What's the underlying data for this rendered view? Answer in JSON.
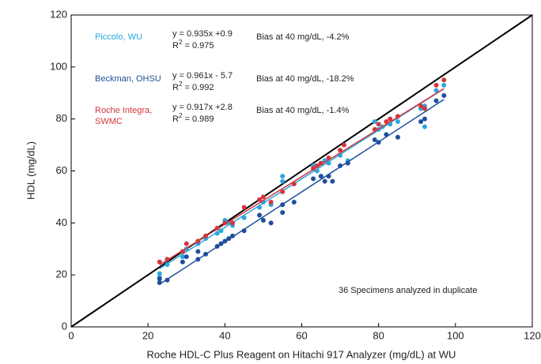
{
  "chart_data": {
    "type": "scatter",
    "x_label": "Roche HDL-C Plus Reagent on Hitachi 917 Analyzer (mg/dL) at WU",
    "y_label": "HDL (mg/dL)",
    "xlim": [
      0,
      120
    ],
    "ylim": [
      0,
      120
    ],
    "xticks": [
      0,
      20,
      40,
      60,
      80,
      100,
      120
    ],
    "yticks": [
      0,
      20,
      40,
      60,
      80,
      100,
      120
    ],
    "identity_line": true,
    "identity_color": "#000000",
    "annotation": "36 Specimens analyzed in duplicate",
    "series": [
      {
        "name": "Piccolo, WU",
        "color": "#2aa6df",
        "equation": "y = 0.935x +0.9",
        "r2_prefix": "R",
        "r2_sup": "2",
        "r2_text": " = 0.975",
        "bias": "Bias at 40 mg/dL, -4.2%",
        "fit_x": [
          23,
          97
        ],
        "fit_y": [
          22.4,
          91.6
        ],
        "x": [
          23,
          23,
          25,
          29,
          30,
          33,
          35,
          38,
          39,
          40,
          41,
          42,
          45,
          49,
          50,
          52,
          55,
          55,
          63,
          64,
          65,
          66,
          67,
          70,
          72,
          79,
          80,
          81,
          83,
          85,
          91,
          92,
          92,
          95,
          97
        ],
        "values": [
          19,
          20.5,
          24,
          27,
          30,
          32,
          34,
          36,
          37,
          41,
          40,
          39,
          42,
          46,
          48,
          47,
          56,
          58,
          62,
          60,
          63,
          64,
          63,
          66,
          64,
          79,
          76,
          77,
          78,
          79,
          84,
          77,
          85,
          91,
          93
        ]
      },
      {
        "name": "Beckman, OHSU",
        "color": "#1f4f9c",
        "equation": "y = 0.961x - 5.7",
        "r2_prefix": "R",
        "r2_sup": "2",
        "r2_text": " = 0.992",
        "bias": "Bias at 40 mg/dL, -18.2%",
        "fit_x": [
          23,
          97
        ],
        "fit_y": [
          16.4,
          87.5
        ],
        "x": [
          23,
          23,
          25,
          29,
          30,
          33,
          33,
          35,
          38,
          39,
          40,
          41,
          42,
          45,
          49,
          50,
          52,
          55,
          55,
          58,
          63,
          65,
          66,
          67,
          68,
          70,
          72,
          79,
          80,
          82,
          85,
          91,
          92,
          95,
          97
        ],
        "values": [
          17,
          18.5,
          18,
          25,
          27,
          26,
          29,
          28,
          31,
          32,
          33,
          34,
          35,
          37,
          43,
          41,
          40,
          44,
          47,
          48,
          57,
          58,
          56,
          58,
          56,
          62,
          63,
          72,
          71,
          74,
          73,
          79,
          80,
          87,
          89
        ]
      },
      {
        "name": "Roche Integra, SWMC",
        "color": "#d4363d",
        "equation": "y = 0.917x  +2.8",
        "r2_prefix": "R",
        "r2_sup": "2",
        "r2_text": " = 0.989",
        "bias": "Bias at 40 mg/dL, -1.4%",
        "fit_x": [
          23,
          97
        ],
        "fit_y": [
          23.9,
          91.7
        ],
        "x": [
          23,
          25,
          29,
          30,
          33,
          35,
          38,
          40,
          42,
          45,
          49,
          50,
          52,
          55,
          58,
          63,
          64,
          65,
          67,
          70,
          71,
          79,
          80,
          82,
          83,
          85,
          91,
          92,
          95,
          97
        ],
        "values": [
          25,
          26,
          29,
          32,
          33,
          35,
          38,
          40,
          40,
          46,
          49,
          50,
          48,
          52,
          55,
          61,
          62,
          63,
          65,
          68,
          70,
          76,
          78,
          79,
          80,
          81,
          85,
          84,
          93,
          95
        ]
      }
    ]
  }
}
